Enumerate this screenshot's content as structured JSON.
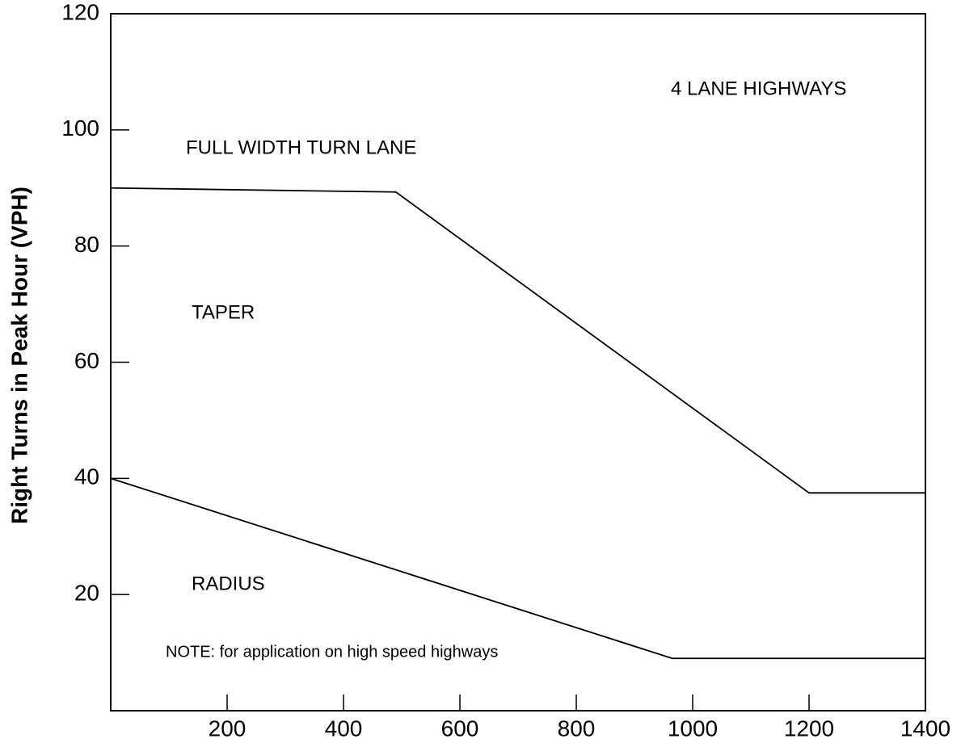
{
  "chart_data": {
    "type": "line",
    "y_label": "Right Turns in Peak Hour (VPH)",
    "annotations": [
      "4 LANE HIGHWAYS",
      "FULL WIDTH TURN LANE",
      "TAPER",
      "RADIUS",
      "NOTE: for application on high speed highways"
    ],
    "series": [
      {
        "name": "full width turn lane boundary",
        "color": "#000000",
        "x": [
          0,
          490,
          1200,
          1400
        ],
        "values": [
          90,
          89.3,
          37.5,
          37.5
        ]
      },
      {
        "name": "taper boundary",
        "color": "#000000",
        "x": [
          0,
          965,
          1400
        ],
        "values": [
          40,
          9,
          9
        ]
      }
    ],
    "xlim": [
      0,
      1400
    ],
    "xticks": [
      200,
      400,
      600,
      800,
      1000,
      1200,
      1400
    ],
    "ylim": [
      0,
      120
    ],
    "yticks": [
      20,
      40,
      60,
      80,
      100,
      120
    ]
  }
}
